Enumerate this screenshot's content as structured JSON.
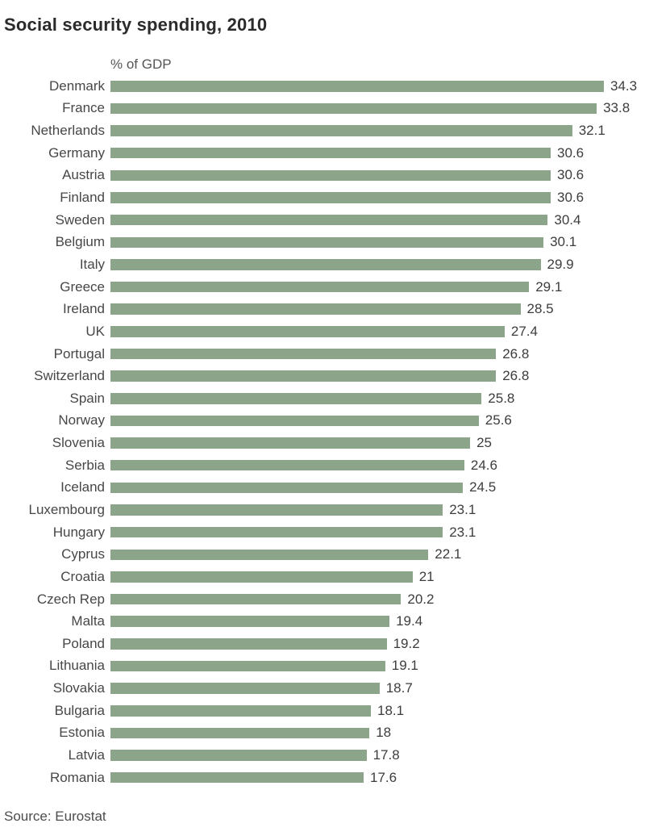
{
  "header": {
    "title": "Social security spending, 2010"
  },
  "footer": {
    "source": "Source: Eurostat"
  },
  "colors": {
    "bar": "#8BA48A",
    "title": "#2b2b2b",
    "category_label": "#474747",
    "value_label": "#3d3d3d",
    "axis_label": "#555555",
    "source": "#4d4d4d",
    "background": "#ffffff"
  },
  "chart_data": {
    "type": "bar",
    "orientation": "horizontal",
    "title": "Social security spending, 2010",
    "axis_label": "% of GDP",
    "xlabel": "% of GDP",
    "ylabel": "",
    "xlim": [
      0,
      34.3
    ],
    "grid": false,
    "legend": false,
    "value_labels_position": "end-of-bar",
    "categories": [
      "Denmark",
      "France",
      "Netherlands",
      "Germany",
      "Austria",
      "Finland",
      "Sweden",
      "Belgium",
      "Italy",
      "Greece",
      "Ireland",
      "UK",
      "Portugal",
      "Switzerland",
      "Spain",
      "Norway",
      "Slovenia",
      "Serbia",
      "Iceland",
      "Luxembourg",
      "Hungary",
      "Cyprus",
      "Croatia",
      "Czech Rep",
      "Malta",
      "Poland",
      "Lithuania",
      "Slovakia",
      "Bulgaria",
      "Estonia",
      "Latvia",
      "Romania"
    ],
    "values": [
      34.3,
      33.8,
      32.1,
      30.6,
      30.6,
      30.6,
      30.4,
      30.1,
      29.9,
      29.1,
      28.5,
      27.4,
      26.8,
      26.8,
      25.8,
      25.6,
      25,
      24.6,
      24.5,
      23.1,
      23.1,
      22.1,
      21,
      20.2,
      19.4,
      19.2,
      19.1,
      18.7,
      18.1,
      18,
      17.8,
      17.6
    ]
  }
}
